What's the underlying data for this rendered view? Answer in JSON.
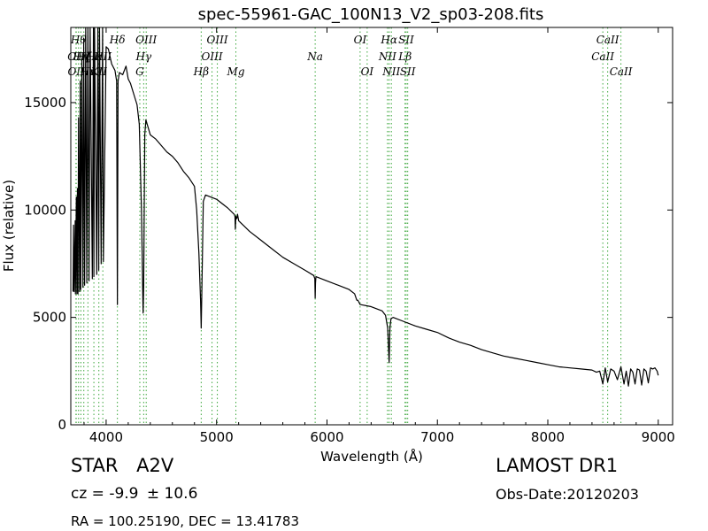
{
  "chart_data": {
    "type": "line",
    "title": "spec-55961-GAC_100N13_V2_sp03-208.fits",
    "xlabel": "Wavelength (Å)",
    "ylabel": "Flux (relative)",
    "xlim": [
      3680,
      9130
    ],
    "ylim": [
      0,
      18500
    ],
    "xticks": [
      4000,
      5000,
      6000,
      7000,
      8000,
      9000
    ],
    "yticks": [
      0,
      5000,
      10000,
      15000
    ],
    "grid": false,
    "series": [
      {
        "x": [
          3700,
          3705,
          3710,
          3720,
          3722,
          3730,
          3735,
          3740,
          3745,
          3750,
          3760,
          3765,
          3770,
          3780,
          3790,
          3797,
          3805,
          3815,
          3825,
          3835,
          3845,
          3855,
          3875,
          3885,
          3889,
          3895,
          3915,
          3925,
          3933,
          3940,
          3955,
          3968,
          3975,
          4000,
          4020,
          4050,
          4080,
          4095,
          4102,
          4108,
          4120,
          4150,
          4180,
          4200,
          4220,
          4250,
          4280,
          4300,
          4320,
          4332,
          4335,
          4340,
          4345,
          4350,
          4360,
          4400,
          4450,
          4500,
          4550,
          4600,
          4650,
          4700,
          4750,
          4800,
          4820,
          4840,
          4855,
          4861,
          4866,
          4880,
          4900,
          5000,
          5100,
          5160,
          5167,
          5170,
          5175,
          5183,
          5190,
          5200,
          5300,
          5400,
          5500,
          5600,
          5700,
          5800,
          5880,
          5890,
          5893,
          5896,
          5900,
          6000,
          6100,
          6200,
          6250,
          6270,
          6280,
          6300,
          6400,
          6500,
          6530,
          6550,
          6563,
          6570,
          6580,
          6600,
          6700,
          6800,
          6900,
          7000,
          7100,
          7200,
          7300,
          7400,
          7500,
          7600,
          7700,
          7800,
          7900,
          8000,
          8100,
          8200,
          8300,
          8400,
          8440,
          8470,
          8498,
          8520,
          8542,
          8570,
          8600,
          8630,
          8662,
          8690,
          8710,
          8730,
          8750,
          8770,
          8790,
          8810,
          8830,
          8850,
          8870,
          8890,
          8910,
          8930,
          8950,
          8970,
          8990,
          9000
        ],
        "values": [
          6200,
          9300,
          6200,
          9500,
          6100,
          10600,
          6100,
          11000,
          6100,
          14300,
          6200,
          16000,
          6300,
          17000,
          6400,
          18000,
          6500,
          18500,
          6600,
          18500,
          6700,
          18500,
          6800,
          18500,
          6900,
          18500,
          7000,
          18500,
          7200,
          18500,
          7500,
          18500,
          7600,
          17600,
          17500,
          16800,
          16500,
          16000,
          5600,
          16000,
          16400,
          16300,
          16700,
          16100,
          15900,
          15400,
          14900,
          14000,
          10000,
          6000,
          5200,
          6500,
          10000,
          13500,
          14200,
          13500,
          13300,
          13000,
          12700,
          12500,
          12200,
          11800,
          11500,
          11100,
          10000,
          8000,
          5800,
          4500,
          6000,
          10400,
          10700,
          10500,
          10100,
          9800,
          9700,
          9100,
          9700,
          9600,
          9800,
          9500,
          9000,
          8600,
          8200,
          7800,
          7500,
          7200,
          6950,
          6800,
          5900,
          6600,
          6900,
          6700,
          6500,
          6300,
          6100,
          5800,
          5800,
          5600,
          5500,
          5300,
          5100,
          4500,
          2900,
          4500,
          4950,
          5000,
          4800,
          4600,
          4450,
          4300,
          4050,
          3850,
          3700,
          3500,
          3350,
          3200,
          3100,
          3000,
          2900,
          2800,
          2700,
          2650,
          2600,
          2550,
          2450,
          2500,
          1900,
          2650,
          2000,
          2600,
          2500,
          2100,
          2700,
          1900,
          2500,
          1800,
          2600,
          2450,
          1900,
          2600,
          2550,
          1850,
          2600,
          2500,
          1950,
          2650,
          2600,
          2650,
          2500,
          2300
        ]
      }
    ],
    "lines": [
      {
        "name": "OII",
        "wl": 3727,
        "row": 1
      },
      {
        "name": "OII",
        "wl": 3729,
        "row": 2
      },
      {
        "name": "Hθ",
        "wl": 3750,
        "row": 0
      },
      {
        "name": "Hη",
        "wl": 3771,
        "row": 1
      },
      {
        "name": "Hζ",
        "wl": 3798,
        "row": 1
      },
      {
        "name": "Hη",
        "wl": 3835,
        "row": 2
      },
      {
        "name": "Hε",
        "wl": 3889,
        "row": 1
      },
      {
        "name": "KII",
        "wl": 3934,
        "row": 2
      },
      {
        "name": "HII",
        "wl": 3970,
        "row": 1
      },
      {
        "name": "Hδ",
        "wl": 4102,
        "row": 0
      },
      {
        "name": "Hγ",
        "wl": 4340,
        "row": 1
      },
      {
        "name": "G",
        "wl": 4305,
        "row": 2
      },
      {
        "name": "OIII",
        "wl": 4363,
        "row": 0
      },
      {
        "name": "Hβ",
        "wl": 4861,
        "row": 2
      },
      {
        "name": "OIII",
        "wl": 4959,
        "row": 1
      },
      {
        "name": "OIII",
        "wl": 5007,
        "row": 0
      },
      {
        "name": "Mg",
        "wl": 5175,
        "row": 2
      },
      {
        "name": "Na",
        "wl": 5893,
        "row": 1
      },
      {
        "name": "OI",
        "wl": 6300,
        "row": 0
      },
      {
        "name": "OI",
        "wl": 6364,
        "row": 2
      },
      {
        "name": "NII",
        "wl": 6548,
        "row": 1
      },
      {
        "name": "Hα",
        "wl": 6563,
        "row": 0
      },
      {
        "name": "NII",
        "wl": 6583,
        "row": 2
      },
      {
        "name": "Lβ",
        "wl": 6707,
        "row": 1
      },
      {
        "name": "SII",
        "wl": 6717,
        "row": 0
      },
      {
        "name": "SII",
        "wl": 6731,
        "row": 2
      },
      {
        "name": "CaII",
        "wl": 8498,
        "row": 1
      },
      {
        "name": "CaII",
        "wl": 8542,
        "row": 0
      },
      {
        "name": "CaII",
        "wl": 8662,
        "row": 2
      }
    ]
  },
  "info": {
    "class_label": "STAR",
    "subclass_label": "A2V",
    "cz_label": "cz = -9.9",
    "cz_error": "± 10.6",
    "coords": "RA = 100.25190, DEC = 13.41783",
    "survey": "LAMOST DR1",
    "obs_date": "Obs-Date:20120203"
  }
}
